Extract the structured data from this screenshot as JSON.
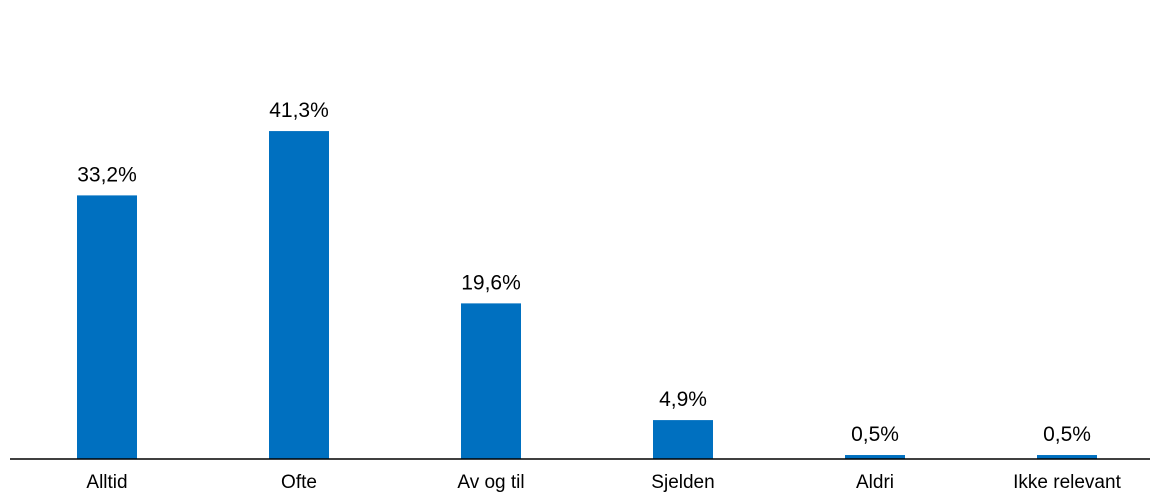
{
  "chart_data": {
    "type": "bar",
    "categories": [
      "Alltid",
      "Ofte",
      "Av og til",
      "Sjelden",
      "Aldri",
      "Ikke relevant"
    ],
    "values": [
      33.2,
      41.3,
      19.6,
      4.9,
      0.5,
      0.5
    ],
    "value_labels": [
      "33,2%",
      "41,3%",
      "19,6%",
      "4,9%",
      "0,5%",
      "0,5%"
    ],
    "title": "",
    "xlabel": "",
    "ylabel": "",
    "ylim": [
      0,
      45
    ],
    "grid": false,
    "legend": "none",
    "colors": {
      "bar": "#0070C0",
      "axis": "#000000",
      "text": "#000000"
    }
  }
}
